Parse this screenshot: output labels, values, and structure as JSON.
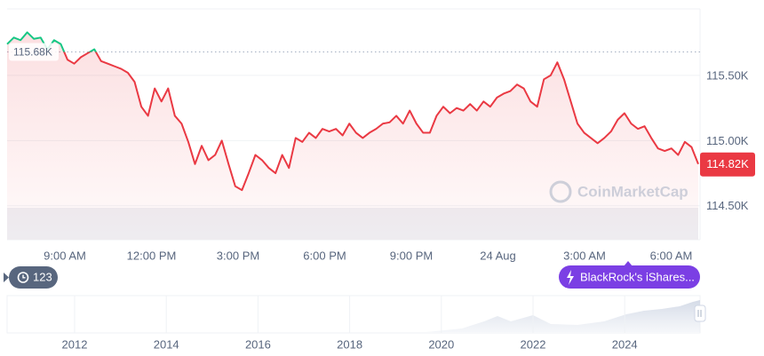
{
  "chart_data": {
    "type": "line",
    "values": [
      115740,
      115790,
      115770,
      115830,
      115780,
      115790,
      115700,
      115770,
      115740,
      115620,
      115590,
      115640,
      115670,
      115700,
      115610,
      115590,
      115570,
      115550,
      115520,
      115450,
      115260,
      115190,
      115400,
      115300,
      115400,
      115190,
      115130,
      114990,
      114820,
      114960,
      114850,
      114890,
      115000,
      114820,
      114650,
      114620,
      114750,
      114890,
      114850,
      114790,
      114750,
      114890,
      114790,
      115020,
      114990,
      115060,
      115020,
      115090,
      115070,
      115090,
      115040,
      115130,
      115060,
      115020,
      115060,
      115090,
      115130,
      115140,
      115190,
      115130,
      115230,
      115130,
      115060,
      115060,
      115190,
      115260,
      115210,
      115250,
      115230,
      115280,
      115230,
      115300,
      115260,
      115330,
      115360,
      115380,
      115430,
      115400,
      115300,
      115260,
      115470,
      115500,
      115600,
      115470,
      115300,
      115130,
      115060,
      115020,
      114980,
      115020,
      115070,
      115160,
      115210,
      115130,
      115090,
      115110,
      115020,
      114940,
      114920,
      114940,
      114890,
      114990,
      114950,
      114820
    ],
    "up_color": "#16c784",
    "down_color": "#ea3943",
    "reference": {
      "value": 115680,
      "label": "115.68K"
    },
    "price_label": {
      "value": 114820,
      "label": "114.82K"
    },
    "ylim": [
      114240,
      116010
    ],
    "yticks": [
      {
        "value": 114500,
        "label": "114.50K"
      },
      {
        "value": 115000,
        "label": "115.00K"
      },
      {
        "value": 115500,
        "label": "115.50K"
      }
    ],
    "xticks": [
      "9:00 AM",
      "12:00 PM",
      "3:00 PM",
      "6:00 PM",
      "9:00 PM",
      "24 Aug",
      "3:00 AM",
      "6:00 AM"
    ],
    "grid": true,
    "watermark": "CoinMarketCap",
    "news_count": 123,
    "event_label": "BlackRock's iShares...",
    "navigator_years": [
      "2012",
      "2014",
      "2016",
      "2018",
      "2020",
      "2022",
      "2024"
    ]
  }
}
